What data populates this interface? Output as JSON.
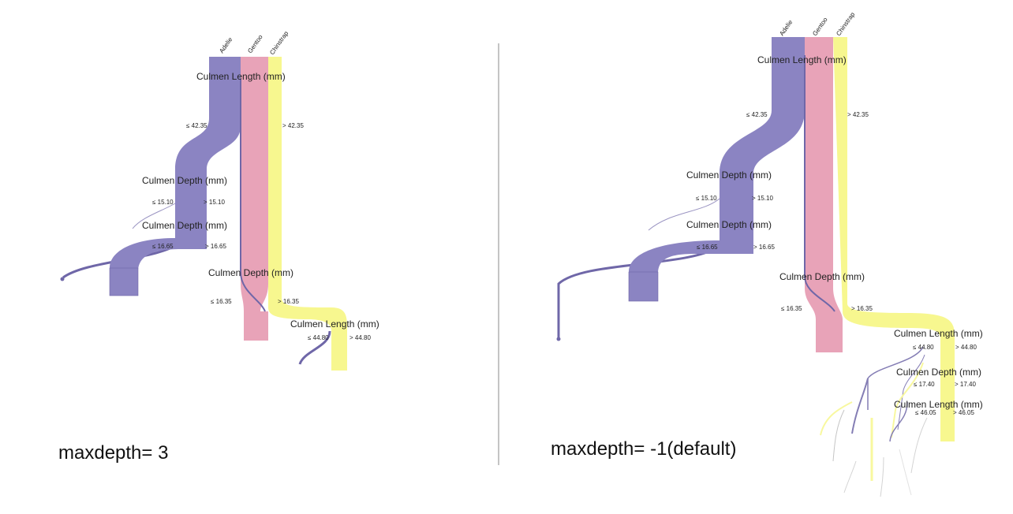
{
  "colors": {
    "adelie": "#8b84c2",
    "gentoo": "#e8a3b8",
    "chinstrap": "#f7f78f",
    "adelie_edge": "#6f67a8",
    "divider": "#888888"
  },
  "species": [
    "Adelie",
    "Gentoo",
    "Chinstrap"
  ],
  "captions": {
    "left": "maxdepth= 3",
    "right": "maxdepth= -1(default)"
  },
  "left_tree": {
    "nodes": [
      {
        "feature": "Culmen Length (mm)",
        "left": "≤ 42.35",
        "right": "> 42.35"
      },
      {
        "feature": "Culmen Depth (mm)",
        "left": "≤ 15.10",
        "right": "> 15.10"
      },
      {
        "feature": "Culmen Depth (mm)",
        "left": "≤ 16.65",
        "right": "> 16.65"
      },
      {
        "feature": "Culmen Depth (mm)",
        "left": "≤ 16.35",
        "right": "> 16.35"
      },
      {
        "feature": "Culmen Length (mm)",
        "left": "≤ 44.80",
        "right": "> 44.80"
      }
    ]
  },
  "right_tree": {
    "nodes": [
      {
        "feature": "Culmen Length (mm)",
        "left": "≤ 42.35",
        "right": "> 42.35"
      },
      {
        "feature": "Culmen Depth (mm)",
        "left": "≤ 15.10",
        "right": "> 15.10"
      },
      {
        "feature": "Culmen Depth (mm)",
        "left": "≤ 16.65",
        "right": "> 16.65"
      },
      {
        "feature": "Culmen Depth (mm)",
        "left": "≤ 16.35",
        "right": "> 16.35"
      },
      {
        "feature": "Culmen Length (mm)",
        "left": "≤ 44.80",
        "right": "> 44.80"
      },
      {
        "feature": "Culmen Depth (mm)",
        "left": "≤ 17.40",
        "right": "> 17.40"
      },
      {
        "feature": "Culmen Length (mm)",
        "left": "≤ 46.05",
        "right": "> 46.05"
      }
    ]
  }
}
